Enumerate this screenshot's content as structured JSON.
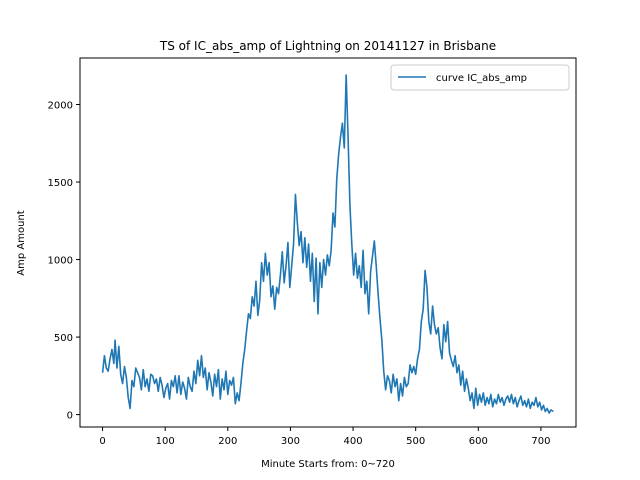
{
  "chart_data": {
    "type": "line",
    "title": "TS of IC_abs_amp of Lightning on 20141127 in Brisbane",
    "xlabel": "Minute Starts from: 0~720",
    "ylabel": "Amp Amount",
    "xlim": [
      -36,
      756
    ],
    "ylim": [
      -80,
      2300
    ],
    "xticks": [
      0,
      100,
      200,
      300,
      400,
      500,
      600,
      700
    ],
    "yticks": [
      0,
      500,
      1000,
      1500,
      2000
    ],
    "grid": false,
    "legend_position": "top-right",
    "colors": {
      "series": "#1f77b4"
    },
    "series": [
      {
        "name": "curve IC_abs_amp",
        "points": [
          [
            0,
            270
          ],
          [
            3,
            380
          ],
          [
            6,
            300
          ],
          [
            9,
            280
          ],
          [
            12,
            360
          ],
          [
            15,
            420
          ],
          [
            18,
            330
          ],
          [
            20,
            480
          ],
          [
            23,
            300
          ],
          [
            26,
            440
          ],
          [
            29,
            260
          ],
          [
            32,
            200
          ],
          [
            35,
            310
          ],
          [
            38,
            240
          ],
          [
            41,
            110
          ],
          [
            44,
            40
          ],
          [
            47,
            220
          ],
          [
            50,
            180
          ],
          [
            53,
            300
          ],
          [
            56,
            270
          ],
          [
            59,
            240
          ],
          [
            62,
            160
          ],
          [
            65,
            290
          ],
          [
            68,
            180
          ],
          [
            71,
            230
          ],
          [
            74,
            150
          ],
          [
            77,
            260
          ],
          [
            80,
            250
          ],
          [
            83,
            200
          ],
          [
            86,
            230
          ],
          [
            89,
            150
          ],
          [
            92,
            240
          ],
          [
            95,
            190
          ],
          [
            98,
            110
          ],
          [
            101,
            170
          ],
          [
            104,
            200
          ],
          [
            107,
            100
          ],
          [
            110,
            220
          ],
          [
            113,
            180
          ],
          [
            116,
            250
          ],
          [
            119,
            140
          ],
          [
            122,
            250
          ],
          [
            125,
            130
          ],
          [
            128,
            210
          ],
          [
            131,
            170
          ],
          [
            134,
            100
          ],
          [
            137,
            240
          ],
          [
            140,
            180
          ],
          [
            143,
            150
          ],
          [
            146,
            280
          ],
          [
            149,
            200
          ],
          [
            152,
            350
          ],
          [
            155,
            250
          ],
          [
            158,
            380
          ],
          [
            161,
            240
          ],
          [
            164,
            300
          ],
          [
            167,
            160
          ],
          [
            170,
            270
          ],
          [
            173,
            210
          ],
          [
            176,
            120
          ],
          [
            179,
            260
          ],
          [
            182,
            180
          ],
          [
            185,
            290
          ],
          [
            188,
            100
          ],
          [
            191,
            230
          ],
          [
            194,
            160
          ],
          [
            197,
            280
          ],
          [
            200,
            130
          ],
          [
            203,
            220
          ],
          [
            206,
            190
          ],
          [
            209,
            240
          ],
          [
            212,
            70
          ],
          [
            215,
            140
          ],
          [
            218,
            90
          ],
          [
            221,
            200
          ],
          [
            224,
            330
          ],
          [
            227,
            420
          ],
          [
            230,
            540
          ],
          [
            233,
            650
          ],
          [
            236,
            620
          ],
          [
            239,
            760
          ],
          [
            242,
            700
          ],
          [
            245,
            860
          ],
          [
            248,
            640
          ],
          [
            251,
            740
          ],
          [
            254,
            980
          ],
          [
            257,
            860
          ],
          [
            260,
            1040
          ],
          [
            263,
            900
          ],
          [
            266,
            980
          ],
          [
            269,
            760
          ],
          [
            272,
            830
          ],
          [
            275,
            680
          ],
          [
            278,
            820
          ],
          [
            281,
            780
          ],
          [
            284,
            900
          ],
          [
            287,
            1050
          ],
          [
            290,
            850
          ],
          [
            293,
            960
          ],
          [
            296,
            1110
          ],
          [
            299,
            820
          ],
          [
            302,
            960
          ],
          [
            305,
            1100
          ],
          [
            308,
            1420
          ],
          [
            311,
            1240
          ],
          [
            314,
            1090
          ],
          [
            317,
            1180
          ],
          [
            320,
            980
          ],
          [
            323,
            1140
          ],
          [
            326,
            950
          ],
          [
            329,
            1100
          ],
          [
            332,
            860
          ],
          [
            335,
            1040
          ],
          [
            338,
            730
          ],
          [
            341,
            1010
          ],
          [
            344,
            650
          ],
          [
            347,
            980
          ],
          [
            350,
            820
          ],
          [
            353,
            1000
          ],
          [
            356,
            900
          ],
          [
            359,
            1030
          ],
          [
            362,
            960
          ],
          [
            365,
            1060
          ],
          [
            368,
            1300
          ],
          [
            371,
            1210
          ],
          [
            374,
            1520
          ],
          [
            377,
            1680
          ],
          [
            380,
            1790
          ],
          [
            383,
            1880
          ],
          [
            386,
            1720
          ],
          [
            389,
            2190
          ],
          [
            392,
            1800
          ],
          [
            395,
            1350
          ],
          [
            398,
            1100
          ],
          [
            401,
            900
          ],
          [
            404,
            1040
          ],
          [
            407,
            880
          ],
          [
            410,
            960
          ],
          [
            413,
            820
          ],
          [
            416,
            1060
          ],
          [
            419,
            780
          ],
          [
            422,
            860
          ],
          [
            425,
            650
          ],
          [
            428,
            920
          ],
          [
            431,
            1020
          ],
          [
            434,
            1120
          ],
          [
            437,
            960
          ],
          [
            440,
            780
          ],
          [
            443,
            620
          ],
          [
            446,
            480
          ],
          [
            449,
            280
          ],
          [
            452,
            160
          ],
          [
            455,
            250
          ],
          [
            458,
            220
          ],
          [
            461,
            140
          ],
          [
            464,
            260
          ],
          [
            467,
            180
          ],
          [
            470,
            230
          ],
          [
            473,
            90
          ],
          [
            476,
            200
          ],
          [
            479,
            120
          ],
          [
            482,
            240
          ],
          [
            485,
            180
          ],
          [
            488,
            200
          ],
          [
            491,
            320
          ],
          [
            494,
            270
          ],
          [
            497,
            310
          ],
          [
            500,
            260
          ],
          [
            503,
            360
          ],
          [
            506,
            420
          ],
          [
            509,
            600
          ],
          [
            512,
            680
          ],
          [
            515,
            930
          ],
          [
            518,
            820
          ],
          [
            521,
            600
          ],
          [
            524,
            520
          ],
          [
            527,
            700
          ],
          [
            530,
            580
          ],
          [
            533,
            520
          ],
          [
            536,
            560
          ],
          [
            539,
            430
          ],
          [
            542,
            360
          ],
          [
            545,
            580
          ],
          [
            548,
            470
          ],
          [
            551,
            600
          ],
          [
            554,
            400
          ],
          [
            557,
            350
          ],
          [
            560,
            310
          ],
          [
            563,
            380
          ],
          [
            566,
            270
          ],
          [
            569,
            320
          ],
          [
            572,
            190
          ],
          [
            575,
            280
          ],
          [
            578,
            150
          ],
          [
            581,
            230
          ],
          [
            584,
            170
          ],
          [
            587,
            90
          ],
          [
            590,
            140
          ],
          [
            593,
            40
          ],
          [
            596,
            170
          ],
          [
            599,
            60
          ],
          [
            602,
            130
          ],
          [
            605,
            80
          ],
          [
            608,
            140
          ],
          [
            611,
            60
          ],
          [
            614,
            110
          ],
          [
            617,
            70
          ],
          [
            620,
            130
          ],
          [
            623,
            50
          ],
          [
            626,
            100
          ],
          [
            629,
            70
          ],
          [
            632,
            130
          ],
          [
            635,
            80
          ],
          [
            638,
            110
          ],
          [
            641,
            60
          ],
          [
            644,
            100
          ],
          [
            647,
            120
          ],
          [
            650,
            80
          ],
          [
            653,
            130
          ],
          [
            656,
            70
          ],
          [
            659,
            110
          ],
          [
            662,
            50
          ],
          [
            665,
            90
          ],
          [
            668,
            120
          ],
          [
            671,
            60
          ],
          [
            674,
            90
          ],
          [
            677,
            50
          ],
          [
            680,
            100
          ],
          [
            683,
            40
          ],
          [
            686,
            80
          ],
          [
            689,
            60
          ],
          [
            692,
            110
          ],
          [
            695,
            50
          ],
          [
            698,
            80
          ],
          [
            701,
            30
          ],
          [
            704,
            60
          ],
          [
            707,
            20
          ],
          [
            710,
            40
          ],
          [
            713,
            10
          ],
          [
            716,
            30
          ],
          [
            720,
            20
          ]
        ]
      }
    ]
  }
}
